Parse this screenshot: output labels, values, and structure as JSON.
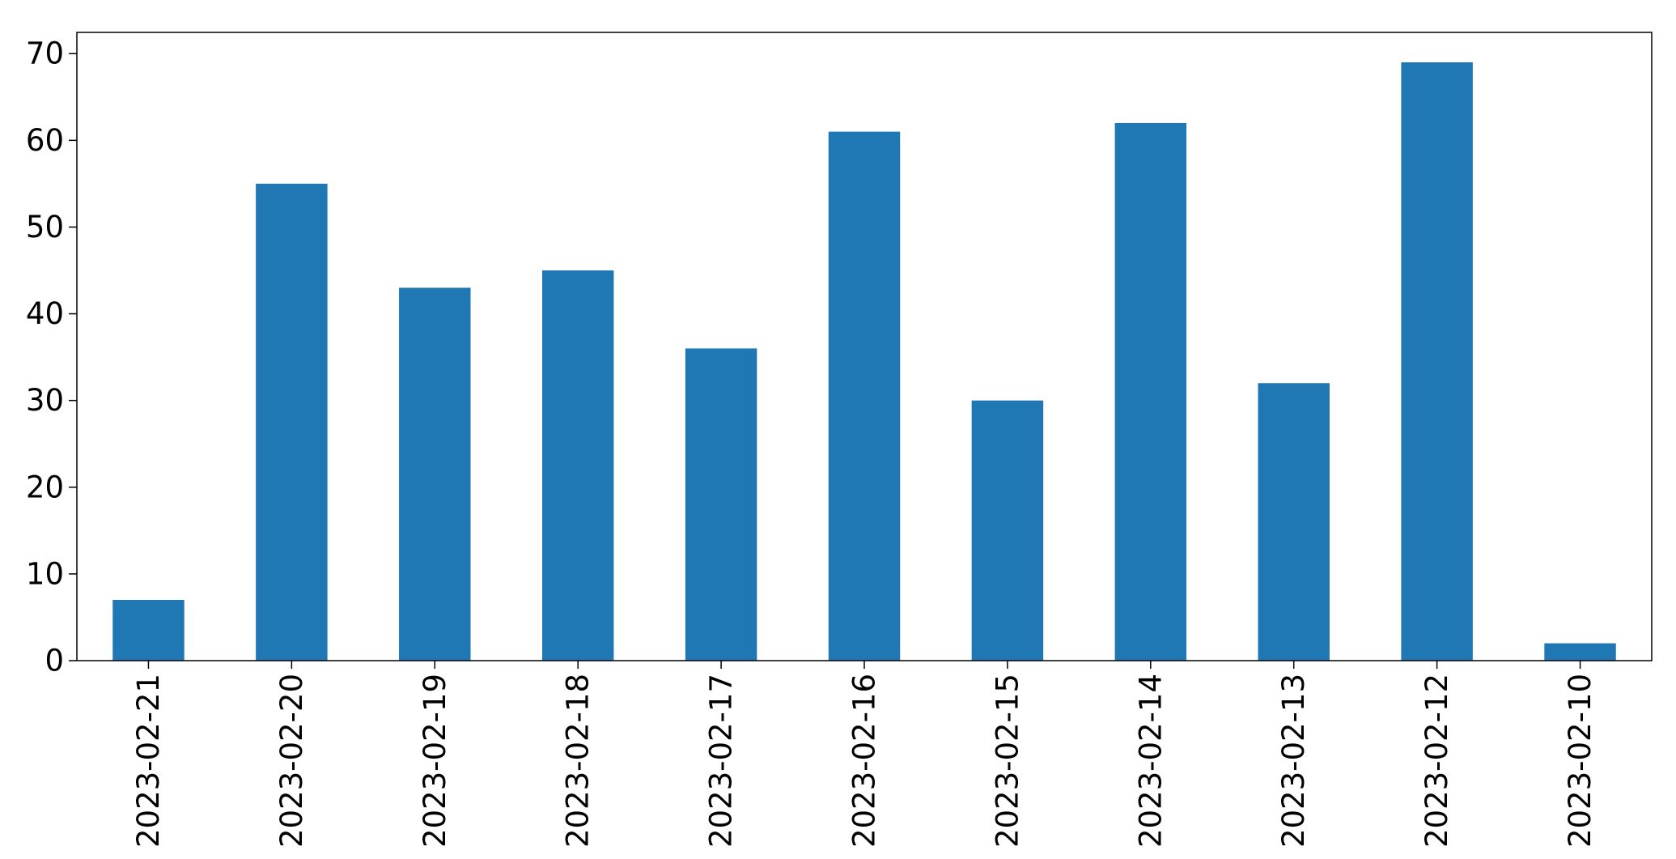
{
  "chart_data": {
    "type": "bar",
    "title": "",
    "xlabel": "",
    "ylabel": "",
    "categories": [
      "2023-02-21",
      "2023-02-20",
      "2023-02-19",
      "2023-02-18",
      "2023-02-17",
      "2023-02-16",
      "2023-02-15",
      "2023-02-14",
      "2023-02-13",
      "2023-02-12",
      "2023-02-10"
    ],
    "values": [
      7,
      55,
      43,
      45,
      36,
      61,
      30,
      62,
      32,
      69,
      2
    ],
    "ylim": [
      0,
      72.45
    ],
    "yticks": [
      0,
      10,
      20,
      30,
      40,
      50,
      60,
      70
    ],
    "grid": false,
    "legend": "none",
    "bar_color": "#1f77b4"
  }
}
